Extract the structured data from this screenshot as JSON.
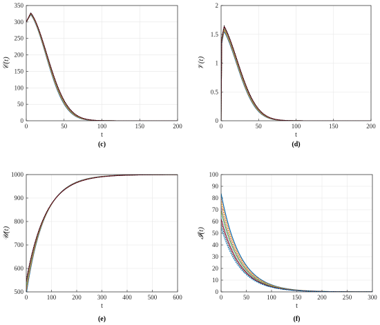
{
  "colors": [
    "#0072bd",
    "#d95319",
    "#edb120",
    "#7e2f8e",
    "#77ac30",
    "#4dbeee",
    "#a2142f",
    "#000000"
  ],
  "chart_data": [
    {
      "id": "c",
      "type": "line",
      "caption": "(c)",
      "xlabel": "t",
      "ylabel": "𝒞(t)",
      "xlim": [
        0,
        200
      ],
      "ylim": [
        0,
        350
      ],
      "xticks": [
        "0",
        "50",
        "100",
        "150",
        "200"
      ],
      "yticks": [
        "0",
        "50",
        "100",
        "150",
        "200",
        "250",
        "300",
        "350"
      ],
      "grid": true,
      "model": {
        "kind": "hump",
        "start": 300,
        "peak": 325,
        "peak_t": 6,
        "decay": 28,
        "spread": 0.06,
        "count": 8
      }
    },
    {
      "id": "d",
      "type": "line",
      "caption": "(d)",
      "xlabel": "t",
      "ylabel": "𝒱(t)",
      "xlim": [
        0,
        200
      ],
      "ylim": [
        0,
        2
      ],
      "xticks": [
        "0",
        "50",
        "100",
        "150",
        "200"
      ],
      "yticks": [
        "0",
        "0.5",
        "1",
        "1.5",
        "2"
      ],
      "grid": true,
      "model": {
        "kind": "spike",
        "peak": 1.6,
        "peak_t": 4,
        "decay": 25,
        "spread": 0.05,
        "count": 8
      }
    },
    {
      "id": "e",
      "type": "line",
      "caption": "(e)",
      "xlabel": "t",
      "ylabel": "𝒰(t)",
      "xlim": [
        0,
        600
      ],
      "ylim": [
        500,
        1000
      ],
      "xticks": [
        "0",
        "100",
        "200",
        "300",
        "400",
        "500",
        "600"
      ],
      "yticks": [
        "500",
        "600",
        "700",
        "800",
        "900",
        "1000"
      ],
      "grid": true,
      "model": {
        "kind": "saturate",
        "start": 520,
        "end": 1000,
        "rate": 75,
        "spread": 0.08,
        "count": 8
      }
    },
    {
      "id": "f",
      "type": "line",
      "caption": "(f)",
      "xlabel": "t",
      "ylabel": "𝓘(t)",
      "xlim": [
        0,
        300
      ],
      "ylim": [
        0,
        100
      ],
      "xticks": [
        "0",
        "50",
        "100",
        "150",
        "200",
        "250",
        "300"
      ],
      "yticks": [
        "0",
        "10",
        "20",
        "30",
        "40",
        "50",
        "60",
        "70",
        "80",
        "90",
        "100"
      ],
      "grid": true,
      "model": {
        "kind": "decay",
        "start": 84,
        "start_min": 55,
        "decay": 38,
        "count": 9
      }
    }
  ]
}
